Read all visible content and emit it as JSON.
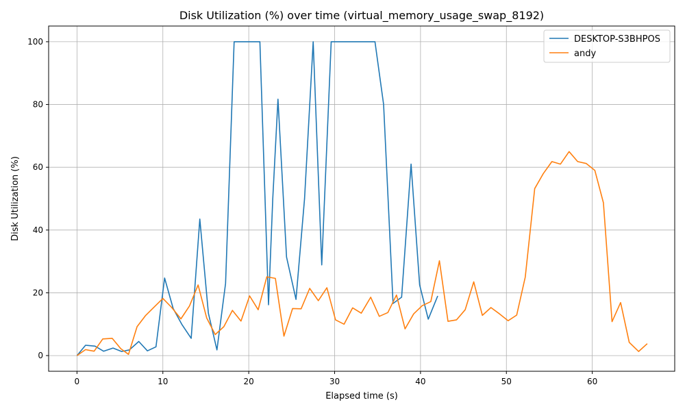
{
  "chart_data": {
    "type": "line",
    "title": "Disk Utilization (%) over time (virtual_memory_usage_swap_8192)",
    "xlabel": "Elapsed time (s)",
    "ylabel": "Disk Utilization (%)",
    "xlim": [
      -3.3,
      69.6
    ],
    "ylim": [
      -5,
      105
    ],
    "xticks": [
      0,
      10,
      20,
      30,
      40,
      50,
      60
    ],
    "yticks": [
      0,
      20,
      40,
      60,
      80,
      100
    ],
    "grid": true,
    "legend_position": "top-right",
    "series": [
      {
        "name": "DESKTOP-S3BHPOS",
        "color": "#1f77b4",
        "x": [
          0,
          1.0,
          2.1,
          3.1,
          4.2,
          5.2,
          6.1,
          7.2,
          8.2,
          9.2,
          10.2,
          11.2,
          12.2,
          13.3,
          14.3,
          15.3,
          16.3,
          17.3,
          18.3,
          19.3,
          20.3,
          21.3,
          22.3,
          22.8,
          23.4,
          24.4,
          25.5,
          26.5,
          27.5,
          28.5,
          29.6,
          30.6,
          31.6,
          32.6,
          33.6,
          34.7,
          35.7,
          36.8,
          37.8,
          38.9,
          39.9,
          40.9,
          42.0
        ],
        "y": [
          0,
          3.3,
          3.0,
          1.4,
          2.4,
          1.3,
          1.8,
          4.5,
          1.5,
          2.8,
          24.7,
          15.0,
          10.0,
          5.5,
          43.5,
          13.5,
          1.8,
          23.0,
          100,
          100,
          100,
          100,
          16.2,
          50.0,
          81.7,
          31.4,
          17.9,
          50.0,
          100,
          28.9,
          100,
          100,
          100,
          100,
          100,
          100,
          80.0,
          16.6,
          18.6,
          61.0,
          22.5,
          11.6,
          19.0
        ]
      },
      {
        "name": "andy",
        "color": "#ff7f0e",
        "x": [
          0,
          1.0,
          2.0,
          3.0,
          4.1,
          5.1,
          6.0,
          7.0,
          8.0,
          9.0,
          10.0,
          11.0,
          12.1,
          13.1,
          14.1,
          15.1,
          16.1,
          17.1,
          18.1,
          19.1,
          20.1,
          21.1,
          22.1,
          23.1,
          24.1,
          25.1,
          26.1,
          27.1,
          28.1,
          29.1,
          30.1,
          31.1,
          32.1,
          33.1,
          34.2,
          35.2,
          36.2,
          37.2,
          38.2,
          39.2,
          40.2,
          41.2,
          42.2,
          43.2,
          44.2,
          45.2,
          46.2,
          47.2,
          48.2,
          49.2,
          50.2,
          51.2,
          52.2,
          53.3,
          54.3,
          55.3,
          56.3,
          57.3,
          58.3,
          59.3,
          60.3,
          61.3,
          62.3,
          63.3,
          64.3,
          65.4,
          66.4
        ],
        "y": [
          0,
          1.9,
          1.4,
          5.3,
          5.5,
          2.2,
          0.4,
          9.2,
          12.8,
          15.5,
          18.2,
          15.4,
          11.7,
          15.8,
          22.5,
          12.0,
          6.7,
          9.2,
          14.4,
          11.0,
          19.0,
          14.6,
          25.1,
          24.6,
          6.2,
          15.0,
          14.9,
          21.4,
          17.5,
          21.6,
          11.4,
          10.0,
          15.2,
          13.5,
          18.6,
          12.5,
          13.7,
          19.3,
          8.5,
          13.3,
          15.9,
          17.2,
          30.2,
          10.9,
          11.4,
          14.6,
          23.5,
          12.8,
          15.3,
          13.3,
          11.1,
          12.9,
          25.0,
          53.2,
          58.0,
          61.8,
          61.0,
          65.0,
          61.8,
          61.2,
          59.0,
          48.7,
          10.8,
          16.9,
          4.2,
          1.3,
          3.8
        ]
      }
    ]
  }
}
